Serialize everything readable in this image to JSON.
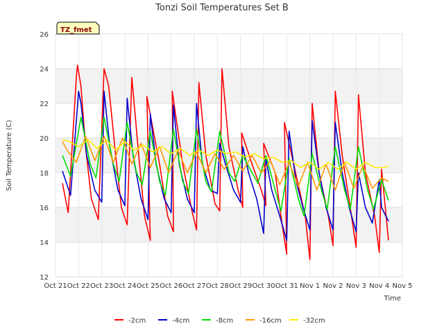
{
  "chart_data": {
    "type": "line",
    "title": "Tonzi Soil Temperatures Set B",
    "xlabel": "Time",
    "ylabel": "Soil Temperature (C)",
    "tag": "TZ_fmet",
    "ylim": [
      12,
      26
    ],
    "yticks": [
      12,
      14,
      16,
      18,
      20,
      22,
      24,
      26
    ],
    "xlim": [
      0,
      15
    ],
    "xticks": [
      {
        "x": 0,
        "label": "Oct 21"
      },
      {
        "x": 1,
        "label": "Oct 22"
      },
      {
        "x": 2,
        "label": "Oct 23"
      },
      {
        "x": 3,
        "label": "Oct 24"
      },
      {
        "x": 4,
        "label": "Oct 25"
      },
      {
        "x": 5,
        "label": "Oct 26"
      },
      {
        "x": 6,
        "label": "Oct 27"
      },
      {
        "x": 7,
        "label": "Oct 28"
      },
      {
        "x": 8,
        "label": "Oct 29"
      },
      {
        "x": 9,
        "label": "Oct 30"
      },
      {
        "x": 10,
        "label": "Oct 31"
      },
      {
        "x": 11,
        "label": "Nov 1"
      },
      {
        "x": 12,
        "label": "Nov 2"
      },
      {
        "x": 13,
        "label": "Nov 3"
      },
      {
        "x": 14,
        "label": "Nov 4"
      },
      {
        "x": 15,
        "label": "Nov 5"
      }
    ],
    "grid": true,
    "legend_position": "bottom",
    "series": [
      {
        "name": "-2cm",
        "color": "#ff0000",
        "x": [
          0.3,
          0.55,
          0.9,
          0.95,
          1.1,
          1.3,
          1.55,
          1.85,
          2.1,
          2.3,
          2.6,
          2.85,
          3.1,
          3.3,
          3.6,
          3.85,
          4.1,
          3.95,
          4.5,
          4.85,
          5.1,
          5.05,
          5.5,
          5.9,
          6.1,
          6.2,
          6.5,
          6.9,
          7.1,
          7.2,
          7.5,
          7.9,
          8.1,
          8.05,
          8.5,
          8.9,
          9.1,
          9.0,
          9.5,
          9.8,
          10.0,
          9.9,
          10.3,
          10.8,
          11.0,
          11.1,
          11.4,
          11.8,
          12.0,
          12.1,
          12.4,
          12.8,
          13.0,
          13.1,
          13.4,
          13.8,
          14.0,
          14.1,
          14.4
        ],
        "y": [
          17.4,
          15.7,
          23.5,
          24.2,
          23.0,
          19.5,
          16.5,
          15.3,
          24.0,
          23.0,
          19.0,
          16.0,
          15.0,
          23.5,
          19.0,
          15.5,
          14.1,
          22.4,
          18.5,
          15.5,
          14.6,
          22.7,
          18.5,
          15.8,
          14.7,
          23.2,
          19.0,
          16.2,
          15.8,
          24.0,
          19.5,
          17.0,
          16.0,
          20.3,
          18.5,
          17.0,
          16.1,
          19.7,
          18.0,
          15.0,
          13.3,
          20.9,
          18.5,
          15.5,
          13.0,
          22.0,
          18.0,
          15.5,
          13.8,
          22.7,
          19.0,
          15.5,
          13.7,
          22.5,
          18.0,
          15.5,
          13.4,
          18.2,
          14.1
        ]
      },
      {
        "name": "-4cm",
        "color": "#0000cc",
        "x": [
          0.3,
          0.65,
          1.0,
          1.1,
          1.35,
          1.7,
          2.0,
          2.1,
          2.35,
          2.7,
          3.0,
          3.1,
          3.35,
          3.7,
          4.0,
          4.1,
          4.35,
          4.7,
          5.0,
          5.1,
          5.35,
          5.7,
          6.0,
          6.1,
          6.35,
          6.7,
          7.0,
          7.1,
          7.35,
          7.7,
          8.0,
          8.1,
          8.35,
          8.7,
          9.0,
          9.1,
          9.35,
          9.7,
          10.0,
          10.1,
          10.4,
          10.7,
          11.0,
          11.1,
          11.4,
          11.7,
          12.0,
          12.1,
          12.4,
          12.7,
          13.0,
          13.1,
          13.4,
          13.7,
          14.0,
          14.1,
          14.4
        ],
        "y": [
          18.1,
          16.7,
          22.7,
          22.0,
          19.0,
          17.0,
          16.3,
          22.7,
          19.5,
          17.0,
          16.1,
          22.3,
          19.0,
          16.5,
          15.3,
          21.4,
          18.5,
          16.5,
          15.7,
          21.9,
          18.5,
          16.5,
          15.7,
          22.0,
          18.5,
          17.0,
          16.8,
          19.7,
          18.5,
          17.0,
          16.3,
          19.5,
          18.0,
          16.5,
          14.5,
          18.8,
          17.0,
          15.5,
          14.1,
          20.4,
          17.5,
          16.0,
          14.7,
          21.0,
          18.0,
          16.0,
          14.7,
          20.9,
          18.0,
          16.0,
          14.6,
          18.0,
          16.0,
          15.1,
          17.6,
          16.0,
          15.2
        ]
      },
      {
        "name": "-8cm",
        "color": "#00dd00",
        "x": [
          0.3,
          0.65,
          1.1,
          1.5,
          1.75,
          2.1,
          2.5,
          2.75,
          3.1,
          3.5,
          3.75,
          4.1,
          4.5,
          4.75,
          5.1,
          5.5,
          5.75,
          6.1,
          6.5,
          6.75,
          7.1,
          7.5,
          7.75,
          8.1,
          8.5,
          8.75,
          9.1,
          9.5,
          9.75,
          10.1,
          10.5,
          10.75,
          11.1,
          11.5,
          11.75,
          12.1,
          12.5,
          12.75,
          13.1,
          13.5,
          13.75,
          14.1,
          14.4
        ],
        "y": [
          19.0,
          17.8,
          21.2,
          18.5,
          17.7,
          21.2,
          18.5,
          17.5,
          20.9,
          18.0,
          17.3,
          20.4,
          17.5,
          16.7,
          20.5,
          17.5,
          16.8,
          20.5,
          17.5,
          16.9,
          20.4,
          18.0,
          17.5,
          19.0,
          18.0,
          17.4,
          19.0,
          17.0,
          15.8,
          18.8,
          16.5,
          15.5,
          19.1,
          17.0,
          15.9,
          19.5,
          17.0,
          15.9,
          19.5,
          17.0,
          15.9,
          17.6,
          16.4
        ]
      },
      {
        "name": "-16cm",
        "color": "#ff9900",
        "x": [
          0.3,
          0.5,
          0.9,
          1.3,
          1.7,
          2.1,
          2.5,
          2.9,
          3.3,
          3.7,
          4.1,
          4.5,
          4.9,
          5.3,
          5.7,
          6.1,
          6.5,
          6.9,
          7.3,
          7.7,
          8.1,
          8.5,
          8.9,
          9.3,
          9.7,
          10.1,
          10.5,
          10.9,
          11.3,
          11.7,
          12.1,
          12.5,
          12.9,
          13.3,
          13.7,
          14.1,
          14.4
        ],
        "y": [
          19.8,
          19.3,
          18.6,
          20.1,
          18.7,
          20.1,
          18.6,
          20.0,
          18.5,
          19.7,
          18.3,
          19.5,
          18.0,
          19.3,
          18.0,
          19.2,
          18.0,
          19.1,
          18.2,
          19.0,
          18.1,
          19.0,
          18.0,
          18.7,
          17.3,
          18.6,
          17.2,
          18.6,
          17.0,
          18.5,
          17.0,
          18.6,
          17.1,
          18.4,
          17.1,
          17.7,
          17.5
        ]
      },
      {
        "name": "-32cm",
        "color": "#ffee00",
        "x": [
          0.3,
          0.6,
          1.0,
          1.4,
          1.8,
          2.2,
          2.6,
          3.0,
          3.4,
          3.8,
          4.2,
          4.6,
          5.0,
          5.4,
          5.8,
          6.2,
          6.6,
          7.0,
          7.4,
          7.8,
          8.2,
          8.6,
          9.0,
          9.4,
          9.8,
          10.2,
          10.6,
          11.0,
          11.4,
          11.8,
          12.2,
          12.6,
          13.0,
          13.4,
          13.8,
          14.2,
          14.4
        ],
        "y": [
          19.9,
          19.8,
          19.5,
          19.9,
          19.4,
          19.9,
          19.3,
          19.8,
          19.3,
          19.6,
          19.2,
          19.5,
          19.1,
          19.4,
          19.0,
          19.3,
          19.0,
          19.3,
          19.1,
          19.2,
          18.9,
          19.1,
          18.8,
          18.9,
          18.6,
          18.7,
          18.3,
          18.6,
          18.2,
          18.6,
          18.2,
          18.6,
          18.2,
          18.6,
          18.3,
          18.3,
          18.4
        ]
      }
    ]
  }
}
